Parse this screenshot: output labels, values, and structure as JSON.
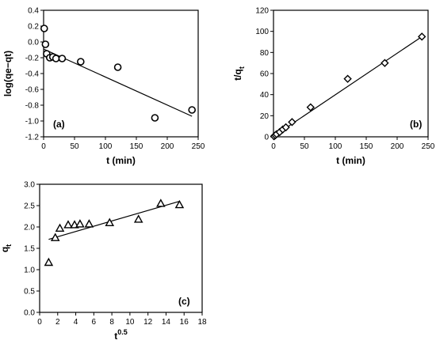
{
  "chart_data": [
    {
      "type": "scatter",
      "panel_label": "(a)",
      "xlabel": "t (min)",
      "ylabel": "log(qe−qt)",
      "xlim": [
        0,
        250
      ],
      "ylim": [
        -1.2,
        0.4
      ],
      "xticks": [
        0,
        50,
        100,
        150,
        200,
        250
      ],
      "yticks": [
        -1.2,
        -1.0,
        -0.8,
        -0.6,
        -0.4,
        -0.2,
        0.0,
        0.2,
        0.4
      ],
      "ytick_labels": [
        "-1.2",
        "-1.0",
        "-0.8",
        "-0.6",
        "-0.4",
        "-0.2",
        "0.0",
        "0.2",
        "0.4"
      ],
      "marker": "circle",
      "grid": false,
      "x": [
        1,
        3,
        5,
        10,
        15,
        20,
        30,
        60,
        120,
        180,
        240
      ],
      "y": [
        0.17,
        -0.03,
        -0.15,
        -0.2,
        -0.19,
        -0.21,
        -0.21,
        -0.25,
        -0.32,
        -0.96,
        -0.86
      ],
      "fit_line": {
        "x": [
          0,
          240
        ],
        "y": [
          -0.09,
          -0.94
        ]
      }
    },
    {
      "type": "scatter",
      "panel_label": "(b)",
      "xlabel": "t (min)",
      "ylabel": "t/q",
      "ylabel_sub": "t",
      "xlim": [
        0,
        250
      ],
      "ylim": [
        0,
        120
      ],
      "xticks": [
        0,
        50,
        100,
        150,
        200,
        250
      ],
      "yticks": [
        0,
        20,
        40,
        60,
        80,
        100,
        120
      ],
      "ytick_labels": [
        "0",
        "20",
        "40",
        "60",
        "80",
        "100",
        "120"
      ],
      "marker": "diamond",
      "grid": false,
      "x": [
        1,
        3,
        5,
        10,
        15,
        20,
        30,
        60,
        120,
        180,
        240
      ],
      "y": [
        0.5,
        1.5,
        2.5,
        4.5,
        7,
        9,
        14,
        28,
        55,
        70,
        95
      ],
      "fit_line": {
        "x": [
          0,
          240
        ],
        "y": [
          0.5,
          95
        ]
      }
    },
    {
      "type": "scatter",
      "panel_label": "(c)",
      "xlabel": "t",
      "xlabel_sup": "0.5",
      "ylabel": "q",
      "ylabel_sub": "t",
      "xlim": [
        0,
        18
      ],
      "ylim": [
        0,
        3.0
      ],
      "xticks": [
        0,
        2,
        4,
        6,
        8,
        10,
        12,
        14,
        16,
        18
      ],
      "yticks": [
        0,
        0.5,
        1.0,
        1.5,
        2.0,
        2.5,
        3.0
      ],
      "ytick_labels": [
        "0.0",
        "0.5",
        "1.0",
        "1.5",
        "2.0",
        "2.5",
        "3.0"
      ],
      "marker": "triangle",
      "grid": false,
      "x": [
        1.0,
        1.73,
        2.24,
        3.16,
        3.87,
        4.47,
        5.48,
        7.75,
        10.95,
        13.42,
        15.49
      ],
      "y": [
        1.17,
        1.75,
        1.97,
        2.05,
        2.05,
        2.07,
        2.07,
        2.1,
        2.18,
        2.55,
        2.52
      ],
      "fit_line": {
        "x": [
          1.0,
          15.49
        ],
        "y": [
          1.71,
          2.6
        ]
      }
    }
  ]
}
